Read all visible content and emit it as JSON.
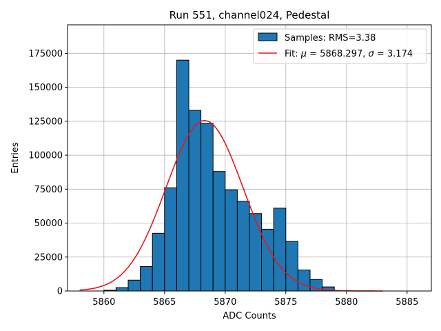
{
  "chart_data": {
    "type": "bar",
    "title": "Run 551, channel024, Pedestal",
    "xlabel": "ADC Counts",
    "ylabel": "Entries",
    "xlim": [
      5857,
      5887
    ],
    "ylim": [
      0,
      196000
    ],
    "grid": true,
    "x_ticks": [
      5860,
      5865,
      5870,
      5875,
      5880,
      5885
    ],
    "y_ticks": [
      0,
      25000,
      50000,
      75000,
      100000,
      125000,
      150000,
      175000
    ],
    "histogram": {
      "name": "Samples: RMS=3.38",
      "color": "#1f77b4",
      "edge_color": "#000000",
      "bin_width": 1,
      "bin_starts": [
        5860,
        5861,
        5862,
        5863,
        5864,
        5865,
        5866,
        5867,
        5868,
        5869,
        5870,
        5871,
        5872,
        5873,
        5874,
        5875,
        5876,
        5877,
        5878
      ],
      "values": [
        600,
        2500,
        8000,
        18000,
        42500,
        76000,
        170000,
        133000,
        123500,
        88000,
        74500,
        66000,
        57000,
        45500,
        61000,
        36500,
        15500,
        8500,
        3000
      ]
    },
    "fit": {
      "name": "Fit: μ = 5868.297, σ = 3.174",
      "label_prefix": "Fit: ",
      "mu_symbol": "μ",
      "mu_text": " = 5868.297, ",
      "sigma_symbol": "σ",
      "sigma_text": " = 3.174",
      "color": "#e8171c",
      "mu": 5868.297,
      "sigma": 3.174,
      "amplitude": 125500,
      "x_range": [
        5858,
        5883
      ]
    },
    "legend_position": "top-right"
  }
}
